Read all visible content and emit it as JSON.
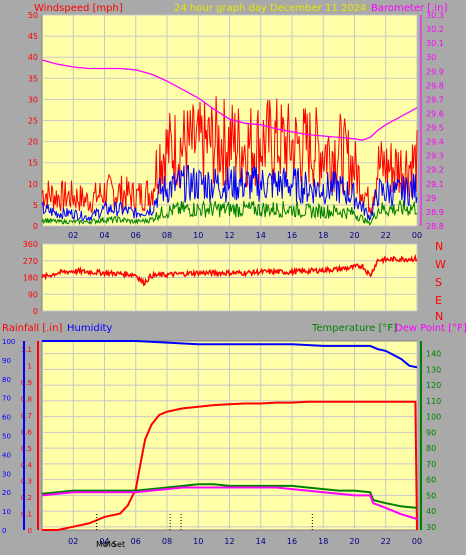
{
  "colors": {
    "background": "#a9a9a9",
    "plot_bg": "#ffffa8",
    "wind": "#ff0000",
    "gust": "#0000ff",
    "avg": "#008000",
    "barometer": "#ff00ff",
    "direction": "#ff0000",
    "rain": "#ff0000",
    "humidity": "#0000ff",
    "temperature": "#008000",
    "dewpoint": "#ff00ff",
    "title": "#e8e800"
  },
  "header": {
    "windspeed_label": "Windspeed [mph]",
    "title": "24 hour graph day   December 11 2024",
    "barometer_label": "Barometer [.in]"
  },
  "middle": {
    "compass": [
      "N",
      "W",
      "S",
      "E",
      "N"
    ]
  },
  "bottom_header": {
    "rainfall_label": "Rainfall [.in]",
    "humidity_label": "Humidity",
    "temperature_label": "Temperature [°F]",
    "dewpoint_label": "Dew Point [°F]"
  },
  "xticks_top": [
    "02",
    "04",
    "06",
    "08",
    "10",
    "12",
    "14",
    "16",
    "18",
    "20",
    "22",
    "00"
  ],
  "xticks_bottom": [
    "02",
    "04",
    "06",
    "08",
    "10",
    "12",
    "14",
    "16",
    "18",
    "20",
    "22",
    "00"
  ],
  "moon_labels": [
    "Mo",
    "Mo",
    "Set"
  ],
  "chart_data": [
    {
      "type": "line",
      "name": "wind_and_pressure",
      "x_range_hours": [
        0,
        24
      ],
      "xticks": [
        "02",
        "04",
        "06",
        "08",
        "10",
        "12",
        "14",
        "16",
        "18",
        "20",
        "22",
        "00"
      ],
      "left_axis": {
        "label": "Windspeed [mph]",
        "ylim": [
          0,
          50
        ],
        "ticks": [
          0,
          5,
          10,
          15,
          20,
          25,
          30,
          35,
          40,
          45,
          50
        ]
      },
      "right_axis": {
        "label": "Barometer [.in]",
        "ylim": [
          28.8,
          30.3
        ],
        "ticks": [
          28.8,
          28.9,
          29,
          29.1,
          29.2,
          29.3,
          29.4,
          29.5,
          29.6,
          29.7,
          29.8,
          29.9,
          30,
          30.1,
          30.2,
          30.3
        ]
      },
      "series": [
        {
          "color": "#ff0000",
          "axis": "left",
          "x": [
            0,
            1,
            2,
            3,
            4,
            5,
            6,
            7,
            7.5,
            8,
            9,
            10,
            11,
            12,
            13,
            14,
            15,
            16,
            17,
            18,
            19,
            20,
            21,
            21.5,
            22,
            23,
            24
          ],
          "y": [
            8,
            7,
            7,
            6,
            8,
            8,
            7,
            8,
            17,
            18,
            19,
            19,
            20,
            20,
            19,
            20,
            20,
            19,
            19,
            18,
            18,
            14,
            5,
            14,
            14,
            14,
            15
          ]
        },
        {
          "color": "#0000ff",
          "axis": "left",
          "x": [
            0,
            1,
            2,
            3,
            4,
            5,
            6,
            7,
            7.5,
            8,
            9,
            10,
            11,
            12,
            13,
            14,
            15,
            16,
            17,
            18,
            19,
            20,
            21,
            21.5,
            22,
            23,
            24
          ],
          "y": [
            4,
            3,
            3,
            2,
            4,
            4,
            3,
            4,
            8,
            9,
            10,
            10,
            10,
            10,
            10,
            10,
            10,
            10,
            9,
            9,
            9,
            7,
            2,
            8,
            8,
            8,
            9
          ]
        },
        {
          "color": "#008000",
          "axis": "left",
          "x": [
            0,
            1,
            2,
            3,
            4,
            5,
            6,
            7,
            7.5,
            8,
            9,
            10,
            11,
            12,
            13,
            14,
            15,
            16,
            17,
            18,
            19,
            20,
            21,
            21.5,
            22,
            23,
            24
          ],
          "y": [
            1.5,
            1,
            1,
            1,
            1.5,
            1.5,
            1,
            1.5,
            3,
            3.5,
            4,
            4,
            4,
            4,
            4,
            4,
            4,
            4,
            3.5,
            3.5,
            3.5,
            3,
            0.5,
            4,
            4,
            4,
            4.5
          ]
        },
        {
          "color": "#ff00ff",
          "axis": "right",
          "x": [
            0,
            1,
            2,
            3,
            4,
            5,
            6,
            7,
            8,
            9,
            10,
            11,
            12,
            13,
            14,
            15,
            16,
            17,
            18,
            19,
            20,
            20.5,
            21,
            21.5,
            22,
            23,
            24
          ],
          "y": [
            29.98,
            29.95,
            29.93,
            29.92,
            29.92,
            29.92,
            29.91,
            29.88,
            29.83,
            29.77,
            29.71,
            29.63,
            29.56,
            29.53,
            29.52,
            29.49,
            29.47,
            29.45,
            29.44,
            29.43,
            29.42,
            29.41,
            29.43,
            29.48,
            29.52,
            29.58,
            29.64
          ]
        }
      ]
    },
    {
      "type": "line",
      "name": "wind_direction",
      "ylim": [
        0,
        360
      ],
      "yticks": [
        0,
        90,
        180,
        270,
        360
      ],
      "series": [
        {
          "color": "#ff0000",
          "x": [
            0,
            1,
            2,
            3,
            4,
            5,
            6,
            6.5,
            7,
            8,
            9,
            10,
            11,
            12,
            13,
            14,
            15,
            16,
            17,
            18,
            19,
            20,
            20.5,
            21,
            21.5,
            22,
            23,
            24
          ],
          "y": [
            180,
            205,
            215,
            210,
            205,
            200,
            195,
            150,
            190,
            195,
            200,
            205,
            205,
            205,
            205,
            210,
            210,
            210,
            215,
            220,
            225,
            235,
            245,
            190,
            275,
            275,
            280,
            280
          ]
        }
      ]
    },
    {
      "type": "line",
      "name": "rain_humidity_temperature",
      "left_axis": {
        "label": "Rainfall [.in]",
        "ylim": [
          0,
          1.15
        ],
        "ticks": [
          0,
          0.1,
          0.2,
          0.3,
          0.4,
          0.5,
          0.6,
          0.7,
          0.8,
          0.9,
          1,
          1.1
        ],
        "humidity_ticks": [
          0,
          10,
          20,
          30,
          40,
          50,
          60,
          70,
          80,
          90,
          100
        ]
      },
      "right_axis": {
        "label": "Temperature [°F]",
        "ylim": [
          28,
          148
        ],
        "ticks": [
          30,
          40,
          50,
          60,
          70,
          80,
          90,
          100,
          110,
          120,
          130,
          140
        ]
      },
      "series": [
        {
          "color": "#ff0000",
          "axis": "left",
          "x": [
            0,
            1,
            2,
            3,
            4,
            5,
            5.5,
            6,
            6.3,
            6.6,
            7,
            7.5,
            8,
            9,
            10,
            11,
            12,
            13,
            14,
            15,
            16,
            17,
            18,
            19,
            20,
            21,
            22,
            23,
            23.9,
            24
          ],
          "y": [
            0,
            0,
            0.02,
            0.04,
            0.08,
            0.1,
            0.15,
            0.25,
            0.4,
            0.55,
            0.64,
            0.7,
            0.72,
            0.74,
            0.75,
            0.76,
            0.765,
            0.77,
            0.77,
            0.775,
            0.775,
            0.78,
            0.78,
            0.78,
            0.78,
            0.78,
            0.78,
            0.78,
            0.78,
            0
          ]
        },
        {
          "color": "#0000ff",
          "axis": "left",
          "x": [
            0,
            2,
            4,
            6,
            8,
            10,
            12,
            14,
            16,
            18,
            20,
            21,
            21.5,
            22,
            23,
            23.5,
            24
          ],
          "y": [
            1.15,
            1.15,
            1.15,
            1.15,
            1.14,
            1.13,
            1.13,
            1.13,
            1.13,
            1.12,
            1.12,
            1.12,
            1.1,
            1.09,
            1.04,
            1.0,
            0.99
          ]
        },
        {
          "color": "#008000",
          "axis": "right",
          "x": [
            0,
            1,
            2,
            3,
            4,
            5,
            6,
            7,
            8,
            9,
            10,
            11,
            12,
            13,
            14,
            15,
            16,
            17,
            18,
            19,
            20,
            21,
            21.2,
            22,
            23,
            24
          ],
          "y": [
            51,
            52,
            53,
            53,
            53,
            53,
            53,
            54,
            55,
            56,
            57,
            57,
            56,
            56,
            56,
            56,
            56,
            55,
            54,
            53,
            53,
            52,
            47,
            45,
            43,
            42
          ]
        },
        {
          "color": "#ff00ff",
          "axis": "right",
          "x": [
            0,
            1,
            2,
            3,
            4,
            5,
            6,
            7,
            8,
            9,
            10,
            11,
            12,
            13,
            14,
            15,
            16,
            17,
            18,
            19,
            20,
            21,
            21.2,
            22,
            23,
            24
          ],
          "y": [
            50,
            51,
            52,
            52,
            52,
            52,
            52,
            53,
            54,
            55,
            55,
            55,
            55,
            55,
            55,
            55,
            54,
            53,
            52,
            51,
            50,
            50,
            45,
            42,
            38,
            35
          ]
        }
      ]
    }
  ]
}
